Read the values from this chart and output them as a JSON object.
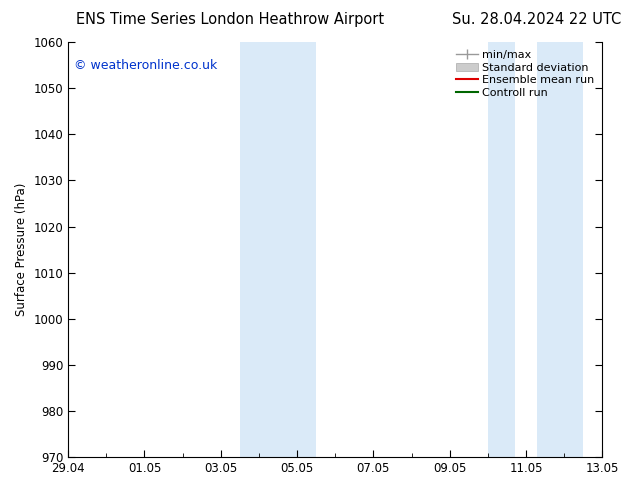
{
  "title_left": "ENS Time Series London Heathrow Airport",
  "title_right": "Su. 28.04.2024 22 UTC",
  "ylabel": "Surface Pressure (hPa)",
  "xlim_start": 0,
  "xlim_end": 14,
  "ylim_bottom": 970,
  "ylim_top": 1060,
  "ytick_interval": 10,
  "xtick_labels": [
    "29.04",
    "01.05",
    "03.05",
    "05.05",
    "07.05",
    "09.05",
    "11.05",
    "13.05"
  ],
  "xtick_positions": [
    0,
    2,
    4,
    6,
    8,
    10,
    12,
    14
  ],
  "watermark": "© weatheronline.co.uk",
  "watermark_color": "#0033cc",
  "shade_color": "#daeaf8",
  "shaded_bands": [
    {
      "x_start": 4.5,
      "x_end": 5.5
    },
    {
      "x_start": 5.5,
      "x_end": 6.5
    },
    {
      "x_start": 11.0,
      "x_end": 11.7
    },
    {
      "x_start": 12.3,
      "x_end": 13.5
    }
  ],
  "legend_entries": [
    {
      "label": "min/max",
      "color": "#aaaaaa",
      "type": "errorbar"
    },
    {
      "label": "Standard deviation",
      "color": "#cccccc",
      "type": "band"
    },
    {
      "label": "Ensemble mean run",
      "color": "#cc0000",
      "type": "line"
    },
    {
      "label": "Controll run",
      "color": "#006600",
      "type": "line"
    }
  ],
  "background_color": "#ffffff",
  "title_fontsize": 10.5,
  "axis_fontsize": 8.5,
  "tick_fontsize": 8.5,
  "watermark_fontsize": 9,
  "legend_fontsize": 8
}
